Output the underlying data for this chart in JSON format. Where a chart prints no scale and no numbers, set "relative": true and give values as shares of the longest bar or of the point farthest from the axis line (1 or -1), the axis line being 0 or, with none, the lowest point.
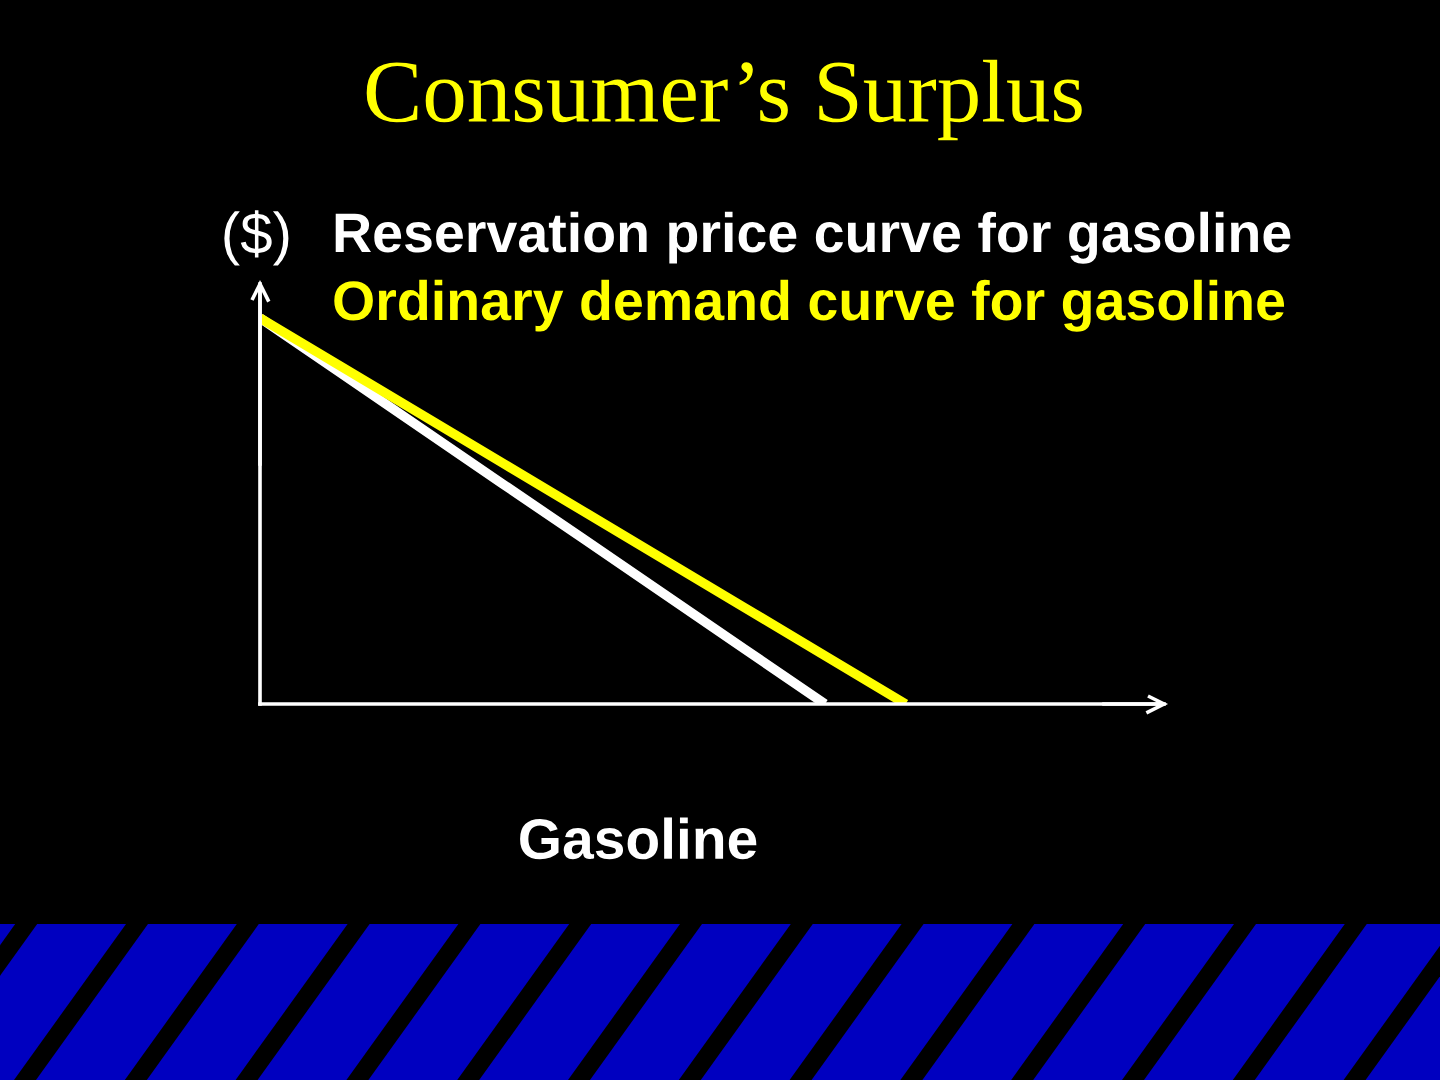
{
  "chart_data": {
    "type": "line",
    "title": "Consumer’s Surplus",
    "ylabel": "($)",
    "xlabel": "Gasoline",
    "relative": true,
    "categories": [
      null,
      null,
      null,
      null,
      null,
      null,
      null,
      null,
      null,
      null,
      null,
      null
    ],
    "series": [
      {
        "name": "Reservation price curve for gasoline",
        "color": "#ffffff",
        "values": [
          1,
          0.857,
          0.714,
          0.571,
          0.429,
          0.286,
          0.143,
          0,
          null,
          null,
          null,
          null
        ]
      },
      {
        "name": "Ordinary demand curve for gasoline",
        "color": "#ffff00",
        "values": [
          1,
          0.875,
          0.75,
          0.625,
          0.5,
          0.375,
          0.25,
          0.125,
          0,
          null,
          null,
          null
        ]
      }
    ],
    "line_style": "solid"
  }
}
